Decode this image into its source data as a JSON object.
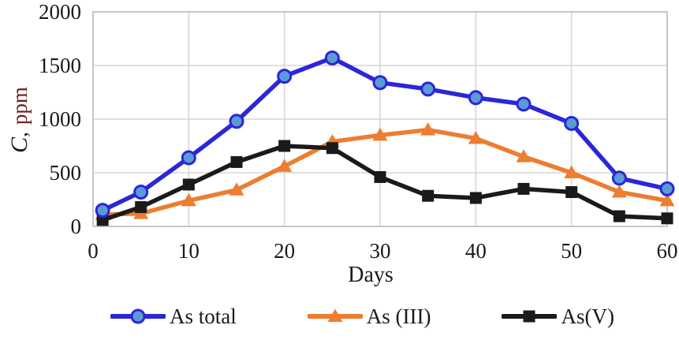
{
  "chart_data": {
    "type": "line",
    "title": "",
    "xlabel": "Days",
    "ylabel": "C, ppm",
    "ylabel_parts": {
      "var": "C",
      "sep": ",",
      "unit": "ppm"
    },
    "x": [
      1,
      5,
      10,
      15,
      20,
      25,
      30,
      35,
      40,
      45,
      50,
      55,
      60
    ],
    "xlim": [
      0,
      60
    ],
    "ylim": [
      0,
      2000
    ],
    "x_ticks": [
      0,
      10,
      20,
      30,
      40,
      50,
      60
    ],
    "y_ticks": [
      0,
      500,
      1000,
      1500,
      2000
    ],
    "grid": true,
    "legend_position": "bottom",
    "colors": {
      "grid": "#d6d6d6",
      "plot_border": "#c2c2c2",
      "axis_text": "#1a1a1a",
      "y_unit_text": "#6a1f1a",
      "background": "#ffffff"
    },
    "series": [
      {
        "name": "As (III)",
        "slug": "as-iii",
        "marker": "triangle",
        "line_color": "#ed7d31",
        "marker_fill": "#ed7d31",
        "marker_stroke": "#ed7d31",
        "values": [
          110,
          120,
          240,
          340,
          560,
          790,
          850,
          900,
          820,
          650,
          500,
          320,
          240
        ]
      },
      {
        "name": "As(V)",
        "slug": "as-v",
        "marker": "square",
        "line_color": "#1a1a1a",
        "marker_fill": "#1a1a1a",
        "marker_stroke": "#1a1a1a",
        "values": [
          60,
          180,
          390,
          600,
          750,
          730,
          460,
          285,
          265,
          350,
          320,
          95,
          75
        ]
      },
      {
        "name": "As total",
        "slug": "as-total",
        "marker": "circle",
        "line_color": "#2b26d8",
        "marker_fill": "#5b9bd5",
        "marker_stroke": "#2b26d8",
        "values": [
          150,
          320,
          640,
          980,
          1400,
          1570,
          1340,
          1280,
          1200,
          1140,
          960,
          450,
          350
        ]
      }
    ],
    "legend_order": [
      "as-total",
      "as-iii",
      "as-v"
    ]
  }
}
